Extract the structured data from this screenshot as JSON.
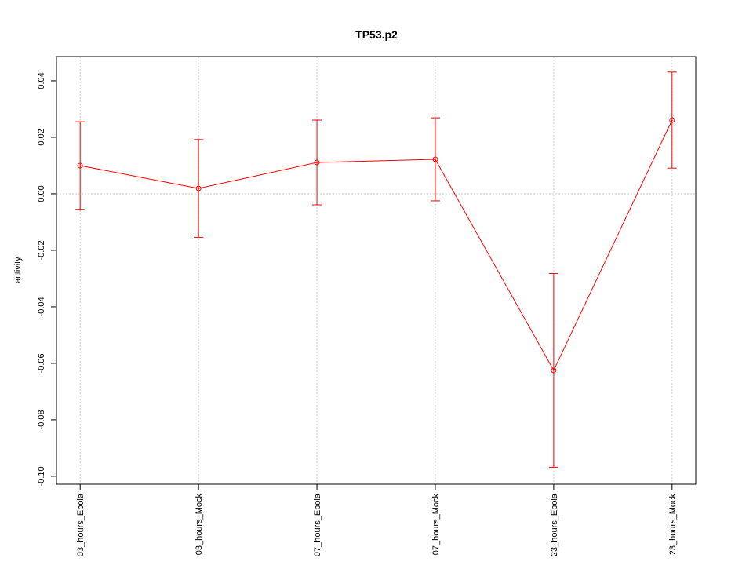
{
  "chart_data": {
    "type": "line",
    "title": "TP53.p2",
    "y_label": "activity",
    "categories": [
      "03_hours_Ebola",
      "03_hours_Mock",
      "07_hours_Ebola",
      "07_hours_Mock",
      "23_hours_Ebola",
      "23_hours_Mock"
    ],
    "series": [
      {
        "name": "activity",
        "color": "#ff0000",
        "values": [
          0.01,
          0.0019,
          0.0111,
          0.0122,
          -0.0625,
          0.0261
        ],
        "errors": [
          0.0155,
          0.0173,
          0.015,
          0.0147,
          0.0343,
          0.017
        ]
      }
    ],
    "ylim": [
      -0.1028,
      0.0486
    ],
    "yticks": [
      {
        "value": -0.1,
        "label": "-0.10"
      },
      -0.08,
      -0.06,
      -0.04,
      -0.02,
      {
        "value": 0,
        "label": "0.00"
      },
      0.02,
      0.04
    ],
    "reference_line": 0,
    "grid": "x"
  }
}
